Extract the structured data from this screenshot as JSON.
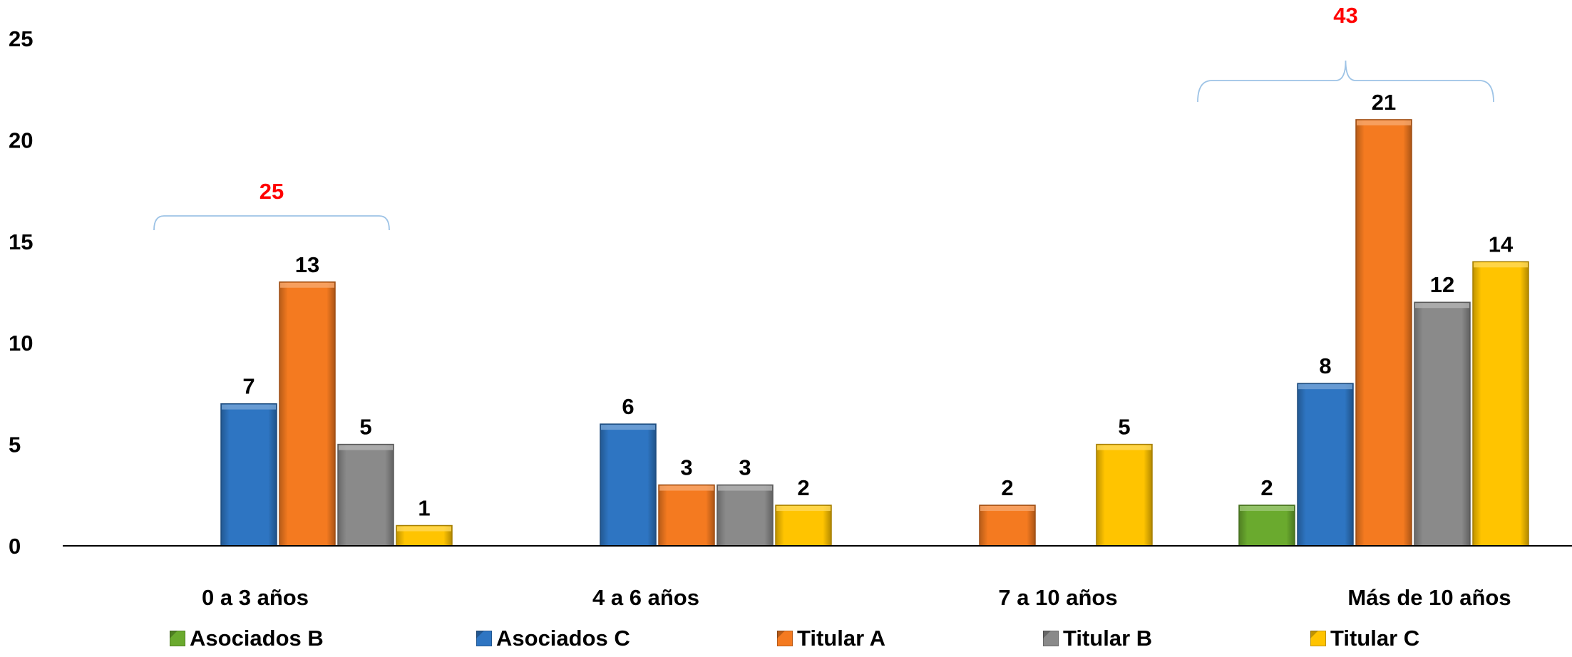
{
  "chart_data": {
    "type": "bar",
    "categories": [
      "0 a 3 años",
      "4 a 6 años",
      "7 a 10 años",
      "Más de 10 años"
    ],
    "series": [
      {
        "name": "Asociados B",
        "color": "#6aaa2e",
        "values": [
          null,
          null,
          null,
          2
        ]
      },
      {
        "name": "Asociados C",
        "color": "#2e75c2",
        "values": [
          7,
          6,
          null,
          8
        ]
      },
      {
        "name": "Titular A",
        "color": "#f47a20",
        "values": [
          13,
          3,
          2,
          21
        ]
      },
      {
        "name": "Titular B",
        "color": "#8a8a8a",
        "values": [
          5,
          3,
          null,
          12
        ]
      },
      {
        "name": "Titular C",
        "color": "#ffc400",
        "values": [
          1,
          2,
          5,
          14
        ]
      }
    ],
    "ylim": [
      0,
      25
    ],
    "yticks": [
      "0",
      "5",
      "10",
      "15",
      "20",
      "25"
    ],
    "annotations": [
      {
        "category": "0 a 3 años",
        "text": "25",
        "color": "#ff0000",
        "spans": [
          "Asociados C",
          "Titular C"
        ]
      },
      {
        "category": "Más de 10 años",
        "text": "43",
        "color": "#ff0000",
        "spans": [
          "Asociados B",
          "Titular B"
        ]
      }
    ],
    "legend_position": "bottom",
    "grid": false
  }
}
